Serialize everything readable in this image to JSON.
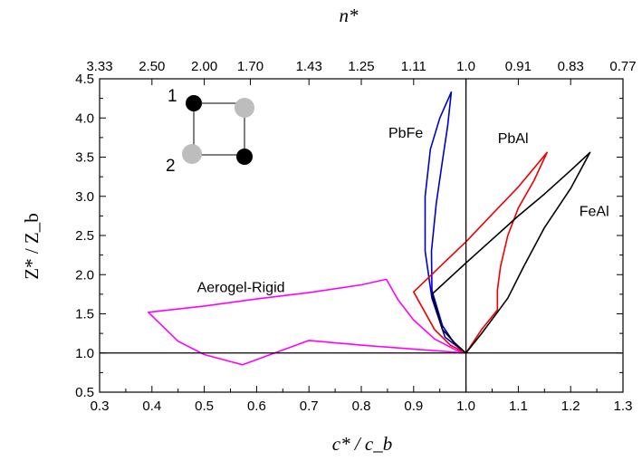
{
  "chart_data": {
    "type": "line",
    "title": "",
    "xlabel": "c* / c_b",
    "ylabel": "Z* / Z_b",
    "top_axis_label": "n*",
    "xlim": [
      0.3,
      1.3
    ],
    "ylim": [
      0.5,
      4.5
    ],
    "x_ticks": [
      "0.3",
      "0.4",
      "0.5",
      "0.6",
      "0.7",
      "0.8",
      "0.9",
      "1.0",
      "1.1",
      "1.2",
      "1.3"
    ],
    "y_ticks": [
      "0.5",
      "1.0",
      "1.5",
      "2.0",
      "2.5",
      "3.0",
      "3.5",
      "4.0",
      "4.5"
    ],
    "top_ticks": [
      {
        "c": 0.3,
        "label": "3.33"
      },
      {
        "c": 0.4,
        "label": "2.50"
      },
      {
        "c": 0.5,
        "label": "2.00"
      },
      {
        "c": 0.588,
        "label": "1.70"
      },
      {
        "c": 0.7,
        "label": "1.43"
      },
      {
        "c": 0.8,
        "label": "1.25"
      },
      {
        "c": 0.9,
        "label": "1.11"
      },
      {
        "c": 1.0,
        "label": "1.0"
      },
      {
        "c": 1.1,
        "label": "0.91"
      },
      {
        "c": 1.2,
        "label": "0.83"
      },
      {
        "c": 1.3,
        "label": "0.77"
      }
    ],
    "reference_lines": {
      "x": 1.0,
      "y": 1.0
    },
    "grid": false,
    "series": [
      {
        "name": "Aerogel-Rigid",
        "color": "#ff00ff",
        "points": [
          [
            1.0,
            1.0
          ],
          [
            0.96,
            1.02
          ],
          [
            0.9,
            1.05
          ],
          [
            0.8,
            1.1
          ],
          [
            0.7,
            1.16
          ],
          [
            0.573,
            0.85
          ],
          [
            0.5,
            0.98
          ],
          [
            0.45,
            1.15
          ],
          [
            0.393,
            1.52
          ],
          [
            0.5,
            1.6
          ],
          [
            0.6,
            1.69
          ],
          [
            0.7,
            1.77
          ],
          [
            0.8,
            1.87
          ],
          [
            0.848,
            1.94
          ],
          [
            0.87,
            1.68
          ],
          [
            0.9,
            1.42
          ],
          [
            0.94,
            1.18
          ],
          [
            0.98,
            1.04
          ],
          [
            1.0,
            1.0
          ]
        ]
      },
      {
        "name": "PbFe",
        "color": "#0000cc",
        "points": [
          [
            1.0,
            1.0
          ],
          [
            0.96,
            1.2
          ],
          [
            0.935,
            1.7
          ],
          [
            0.922,
            2.3
          ],
          [
            0.922,
            3.0
          ],
          [
            0.932,
            3.6
          ],
          [
            0.95,
            4.0
          ],
          [
            0.972,
            4.33
          ],
          [
            0.965,
            3.9
          ],
          [
            0.955,
            3.45
          ],
          [
            0.943,
            2.9
          ],
          [
            0.934,
            2.3
          ],
          [
            0.935,
            1.8
          ],
          [
            0.955,
            1.35
          ],
          [
            0.98,
            1.1
          ],
          [
            1.0,
            1.0
          ]
        ]
      },
      {
        "name": "PbAl",
        "color": "#ee0000",
        "points": [
          [
            1.0,
            1.0
          ],
          [
            0.97,
            1.1
          ],
          [
            0.94,
            1.3
          ],
          [
            0.9,
            1.78
          ],
          [
            0.95,
            2.1
          ],
          [
            1.0,
            2.42
          ],
          [
            1.05,
            2.77
          ],
          [
            1.1,
            3.12
          ],
          [
            1.155,
            3.56
          ],
          [
            1.13,
            3.2
          ],
          [
            1.1,
            2.85
          ],
          [
            1.08,
            2.5
          ],
          [
            1.066,
            2.1
          ],
          [
            1.06,
            1.8
          ],
          [
            1.06,
            1.55
          ],
          [
            1.03,
            1.3
          ],
          [
            1.0,
            1.0
          ]
        ]
      },
      {
        "name": "FeAl",
        "color": "#000000",
        "points": [
          [
            1.0,
            1.0
          ],
          [
            0.98,
            1.12
          ],
          [
            0.955,
            1.3
          ],
          [
            0.935,
            1.75
          ],
          [
            1.0,
            2.15
          ],
          [
            1.05,
            2.45
          ],
          [
            1.1,
            2.75
          ],
          [
            1.15,
            3.03
          ],
          [
            1.2,
            3.33
          ],
          [
            1.237,
            3.56
          ],
          [
            1.2,
            3.1
          ],
          [
            1.15,
            2.6
          ],
          [
            1.11,
            2.1
          ],
          [
            1.08,
            1.7
          ],
          [
            1.06,
            1.52
          ],
          [
            1.03,
            1.25
          ],
          [
            1.0,
            1.0
          ]
        ]
      }
    ],
    "annotations": [
      {
        "text": "Aerogel-Rigid",
        "x": 0.57,
        "y": 1.78
      },
      {
        "text": "PbFe",
        "x": 0.885,
        "y": 3.75
      },
      {
        "text": "PbAl",
        "x": 1.09,
        "y": 3.68
      },
      {
        "text": "FeAl",
        "x": 1.245,
        "y": 2.75
      }
    ],
    "inset": {
      "labels": [
        "1",
        "2"
      ],
      "atom_colors": [
        "#000000",
        "#bdbdbd"
      ]
    }
  }
}
